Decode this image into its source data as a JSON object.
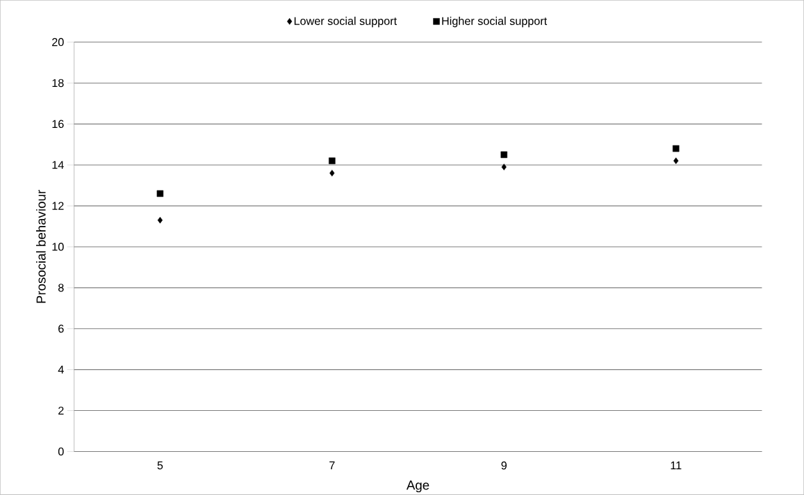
{
  "chart_data": {
    "type": "scatter",
    "xlabel": "Age",
    "ylabel": "Prosocial behaviour",
    "categories": [
      "5",
      "7",
      "9",
      "11"
    ],
    "series": [
      {
        "name": "Lower social support",
        "color": "#000000",
        "marker": "diamond",
        "values": [
          11.3,
          13.6,
          13.9,
          14.2
        ]
      },
      {
        "name": "Higher social support",
        "color": "#000000",
        "marker": "square",
        "values": [
          12.6,
          14.2,
          14.5,
          14.8
        ]
      }
    ],
    "ylim": [
      0,
      20
    ],
    "yticks": [
      0,
      2,
      4,
      6,
      8,
      10,
      12,
      14,
      16,
      18,
      20
    ],
    "grid": "y",
    "legend": "top"
  }
}
